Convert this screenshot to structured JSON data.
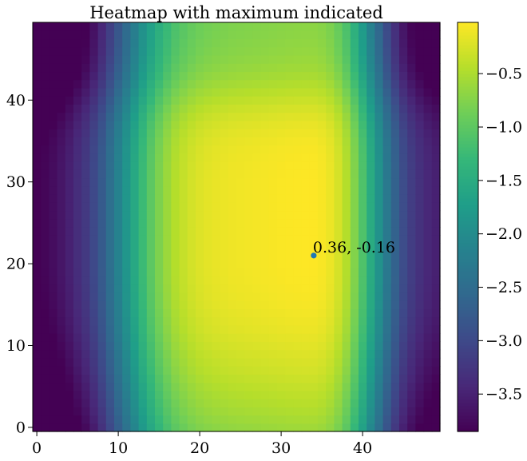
{
  "chart_data": {
    "type": "heatmap",
    "title": "Heatmap with maximum indicated",
    "xlabel": "",
    "ylabel": "",
    "grid": false,
    "colormap": "viridis",
    "nx": 50,
    "ny": 50,
    "xlim": [
      -0.5,
      49.5
    ],
    "ylim": [
      -0.5,
      49.5
    ],
    "x_ticks": [
      0,
      10,
      20,
      30,
      40
    ],
    "y_ticks": [
      0,
      10,
      20,
      30,
      40
    ],
    "colorbar": {
      "range": [
        -3.85,
        -0.02
      ],
      "ticks": [
        -0.5,
        -1.0,
        -1.5,
        -2.0,
        -2.5,
        -3.0,
        -3.5
      ],
      "tick_labels": [
        "−0.5",
        "−1.0",
        "−1.5",
        "−2.0",
        "−2.5",
        "−3.0",
        "−3.5"
      ]
    },
    "x_column_profile": [
      -3.85,
      -3.8,
      -3.72,
      -3.62,
      -3.5,
      -3.35,
      -3.2,
      -3.0,
      -2.75,
      -2.45,
      -2.15,
      -1.85,
      -1.55,
      -1.25,
      -1.0,
      -0.78,
      -0.6,
      -0.45,
      -0.35,
      -0.27,
      -0.21,
      -0.17,
      -0.14,
      -0.12,
      -0.1,
      -0.09,
      -0.08,
      -0.07,
      -0.06,
      -0.05,
      -0.04,
      -0.03,
      -0.025,
      -0.02,
      -0.02,
      -0.05,
      -0.12,
      -0.25,
      -0.45,
      -0.75,
      -1.1,
      -1.5,
      -1.9,
      -2.3,
      -2.65,
      -2.95,
      -3.15,
      -3.3,
      -3.42,
      -3.5
    ],
    "y_row_profile": [
      -0.55,
      -0.5,
      -0.45,
      -0.41,
      -0.37,
      -0.33,
      -0.29,
      -0.25,
      -0.22,
      -0.19,
      -0.16,
      -0.13,
      -0.1,
      -0.08,
      -0.06,
      -0.04,
      -0.03,
      -0.02,
      -0.01,
      -0.005,
      0.0,
      0.0,
      0.0,
      0.0,
      0.0,
      0.0,
      0.0,
      0.0,
      0.0,
      0.0,
      0.0,
      -0.005,
      -0.01,
      -0.02,
      -0.03,
      -0.05,
      -0.08,
      -0.12,
      -0.17,
      -0.23,
      -0.3,
      -0.37,
      -0.44,
      -0.5,
      -0.55,
      -0.59,
      -0.62,
      -0.64,
      -0.66,
      -0.67
    ],
    "max_point": {
      "x": 34,
      "y": 21,
      "label": "0.36, -0.16",
      "marker_color": "#1f77b4"
    }
  }
}
